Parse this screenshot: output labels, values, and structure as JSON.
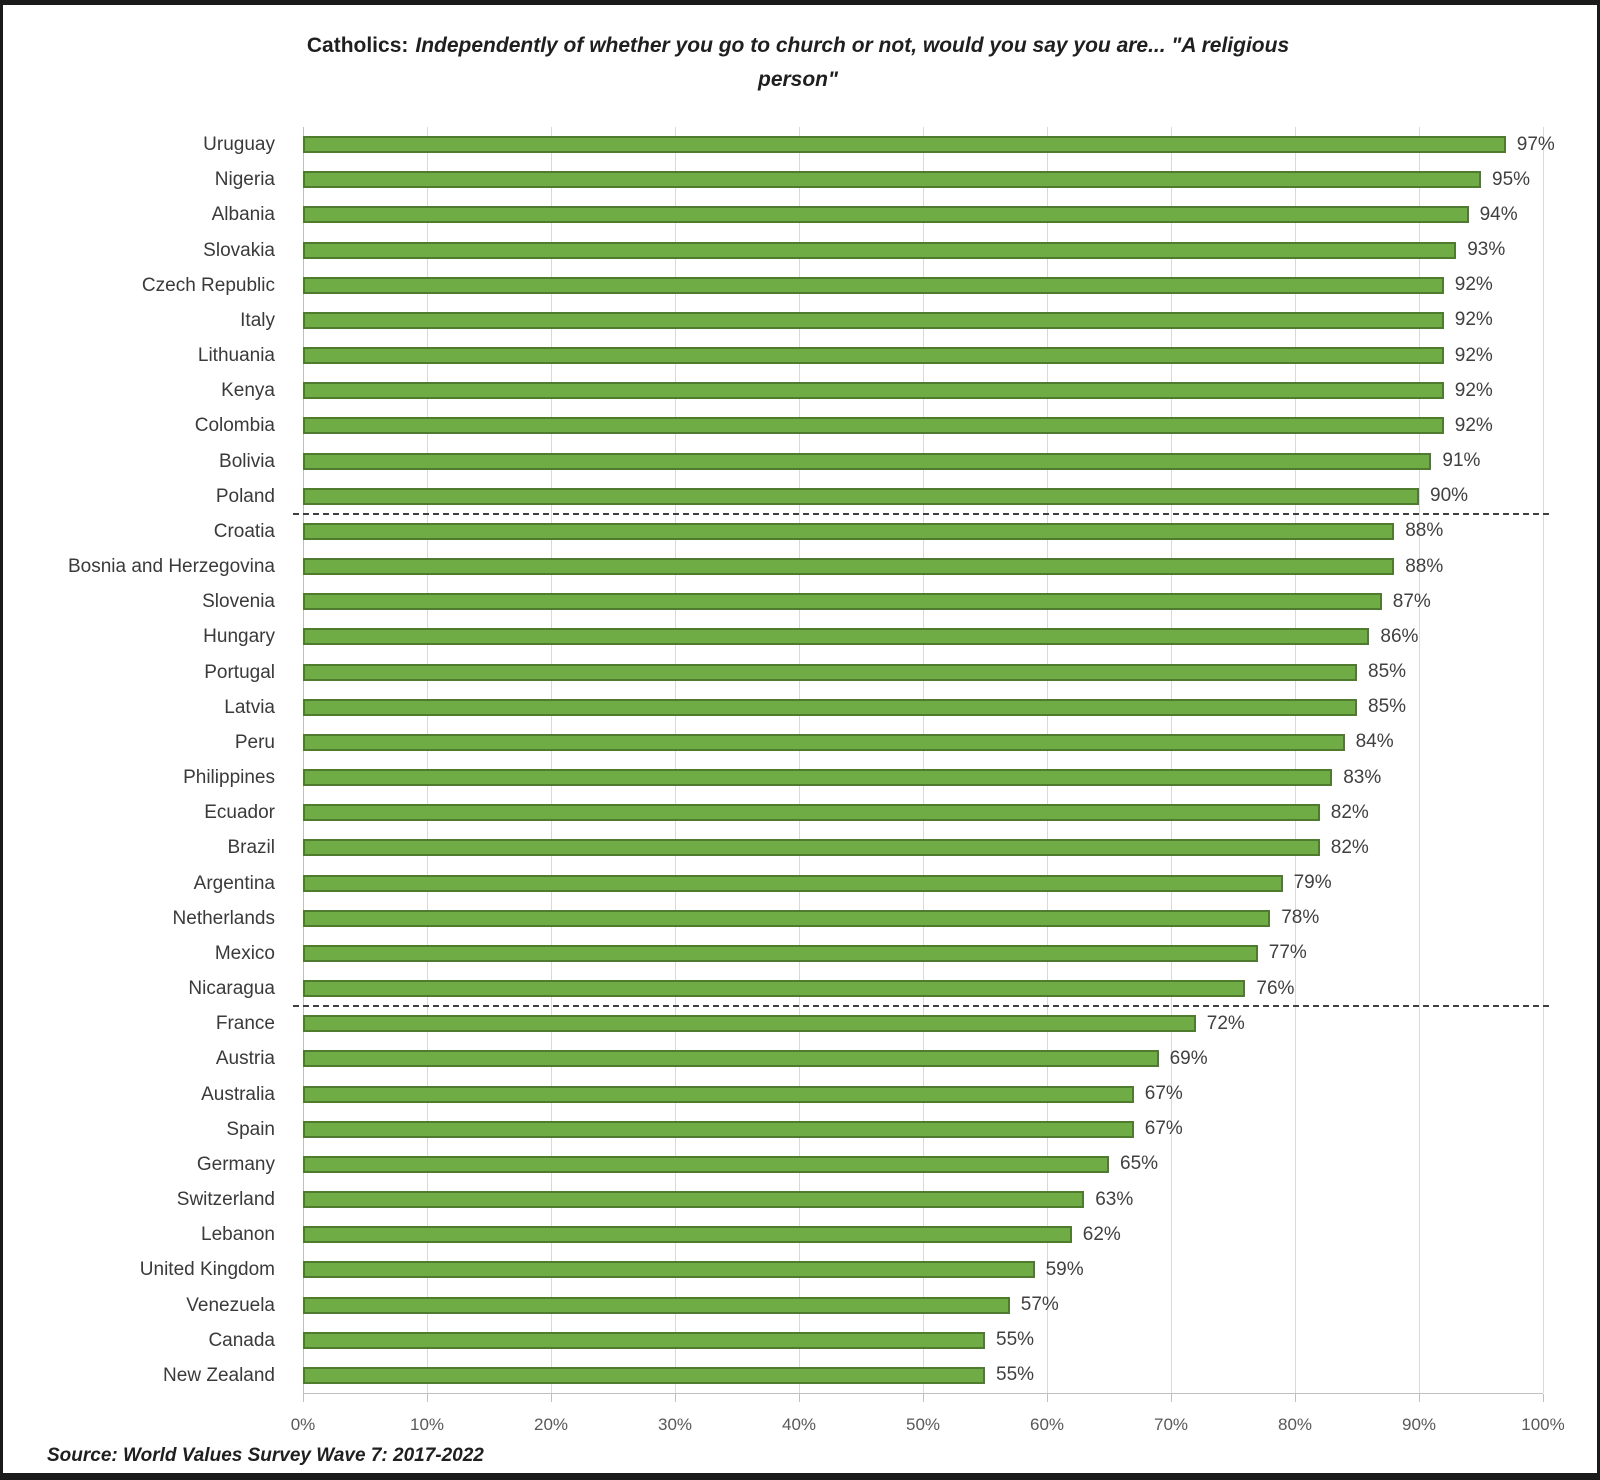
{
  "title": {
    "prefix": "Catholics:",
    "line1": "Independently of whether you go to church or not, would you say you are... \"A religious",
    "line2": "person\""
  },
  "source": "Source: World Values Survey Wave 7: 2017-2022",
  "chart_data": {
    "type": "bar",
    "orientation": "horizontal",
    "title": "Catholics: Independently of whether you go to church or not, would you say you are... \"A religious person\"",
    "source": "Source: World Values Survey Wave 7: 2017-2022",
    "categories": [
      "Uruguay",
      "Nigeria",
      "Albania",
      "Slovakia",
      "Czech Republic",
      "Italy",
      "Lithuania",
      "Kenya",
      "Colombia",
      "Bolivia",
      "Poland",
      "Croatia",
      "Bosnia and Herzegovina",
      "Slovenia",
      "Hungary",
      "Portugal",
      "Latvia",
      "Peru",
      "Philippines",
      "Ecuador",
      "Brazil",
      "Argentina",
      "Netherlands",
      "Mexico",
      "Nicaragua",
      "France",
      "Austria",
      "Australia",
      "Spain",
      "Germany",
      "Switzerland",
      "Lebanon",
      "United Kingdom",
      "Venezuela",
      "Canada",
      "New Zealand"
    ],
    "values": [
      97,
      95,
      94,
      93,
      92,
      92,
      92,
      92,
      92,
      91,
      90,
      88,
      88,
      87,
      86,
      85,
      85,
      84,
      83,
      82,
      82,
      79,
      78,
      77,
      76,
      72,
      69,
      67,
      67,
      65,
      63,
      62,
      59,
      57,
      55,
      55
    ],
    "value_suffix": "%",
    "xlim": [
      0,
      100
    ],
    "x_ticks": [
      "0%",
      "10%",
      "20%",
      "30%",
      "40%",
      "50%",
      "60%",
      "70%",
      "80%",
      "90%",
      "100%"
    ],
    "grid": "vertical-gridlines-on",
    "legend": "none",
    "separators_after_categories": [
      "Poland",
      "Nicaragua"
    ],
    "colors": {
      "bar_fill": "#6FAC46",
      "bar_border": "#4F7B2F",
      "gridline": "#D9D9D9",
      "axis": "#BFBFBF",
      "separator": "#3F3F3F",
      "category_text": "#3A3A3A",
      "value_text": "#404040",
      "tick_text": "#595959"
    }
  }
}
